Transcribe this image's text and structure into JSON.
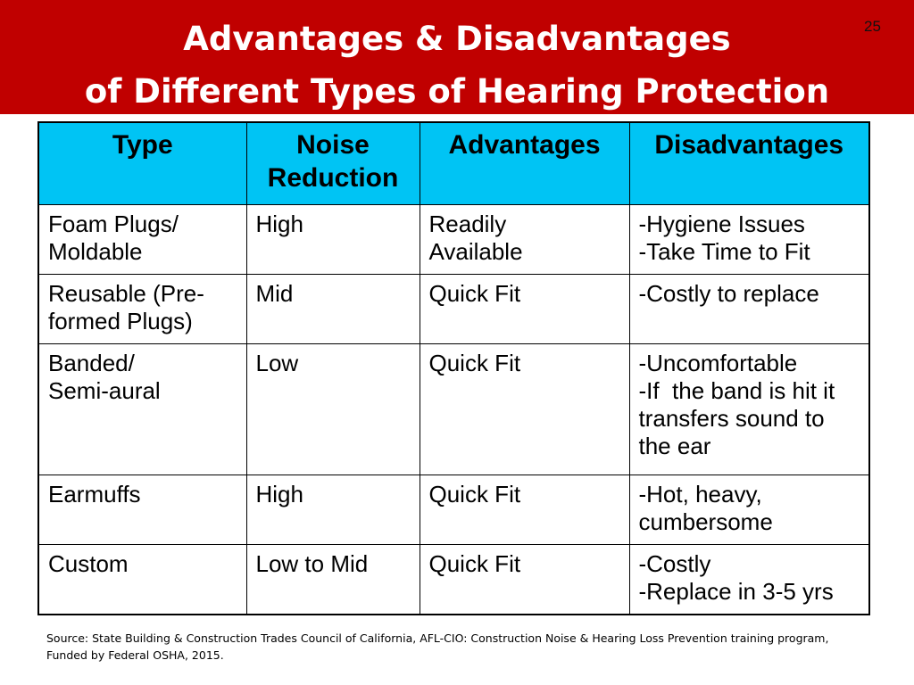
{
  "slide": {
    "title_line1": "Advantages & Disadvantages",
    "title_line2": "of Different Types of Hearing Protection",
    "number": "25"
  },
  "table": {
    "headers": {
      "type": "Type",
      "noise_reduction_line1": "Noise",
      "noise_reduction_line2": "Reduction",
      "advantages": "Advantages",
      "disadvantages": "Disadvantages"
    },
    "rows": [
      {
        "type": [
          "Foam Plugs/",
          "Moldable"
        ],
        "noise": "High",
        "advantages": [
          "Readily",
          "Available"
        ],
        "disadvantages": [
          "-Hygiene Issues",
          "-Take Time to Fit"
        ]
      },
      {
        "type": [
          "Reusable (Pre-",
          "formed Plugs)"
        ],
        "noise": "Mid",
        "advantages": [
          "Quick Fit"
        ],
        "disadvantages": [
          "-Costly to replace"
        ]
      },
      {
        "type": [
          "Banded/",
          "Semi-aural"
        ],
        "noise": "Low",
        "advantages": [
          "Quick Fit"
        ],
        "disadvantages": [
          "-Uncomfortable",
          "-If  the band is hit it",
          "transfers sound to",
          "the ear"
        ]
      },
      {
        "type": [
          "Earmuffs"
        ],
        "noise": "High",
        "advantages": [
          "Quick Fit"
        ],
        "disadvantages": [
          "-Hot, heavy,",
          "cumbersome"
        ]
      },
      {
        "type": [
          "Custom"
        ],
        "noise": "Low to Mid",
        "advantages": [
          "Quick Fit"
        ],
        "disadvantages": [
          "-Costly",
          "-Replace in 3-5 yrs"
        ]
      }
    ]
  },
  "source": {
    "line1": "Source: State Building & Construction Trades Council of California, AFL-CIO:  Construction Noise & Hearing Loss Prevention training program,",
    "line2": "Funded by Federal OSHA, 2015."
  },
  "colors": {
    "banner": "#c00000",
    "header_fill": "#00c4f4"
  }
}
